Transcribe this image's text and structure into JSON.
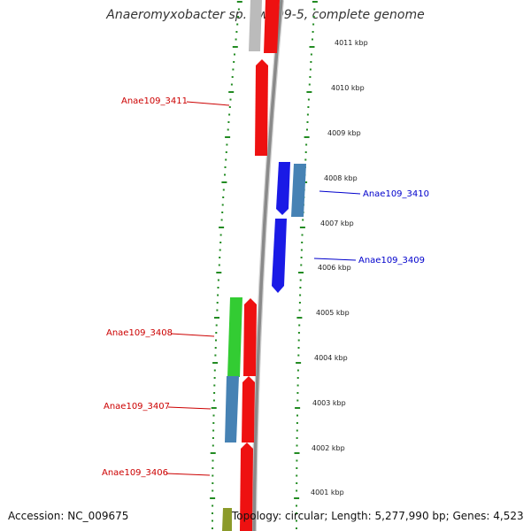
{
  "title": "Anaeromyxobacter sp. Fw109-5, complete genome",
  "footer": {
    "accession": "Accession: NC_009675",
    "summary": "Topology: circular; Length: 5,277,990 bp; Genes: 4,523"
  },
  "colors": {
    "tick": "#228b22",
    "backbone": "#8a8a8a",
    "red_gene": "#ee1111",
    "blue_gene": "#1a1ae6",
    "steel_gene": "#4682b4",
    "green_gene": "#33cc33",
    "grey_gene": "#bbbbbb",
    "olive_gene": "#8b9a2a",
    "label_red": "#cc0000",
    "label_blue": "#0000cc"
  },
  "scale_labels": [
    "4011 kbp",
    "4010 kbp",
    "4009 kbp",
    "4008 kbp",
    "4007 kbp",
    "4006 kbp",
    "4005 kbp",
    "4004 kbp",
    "4003 kbp",
    "4002 kbp",
    "4001 kbp"
  ],
  "gene_labels": [
    "Anae109_3411",
    "Anae109_3410",
    "Anae109_3409",
    "Anae109_3408",
    "Anae109_3407",
    "Anae109_3406"
  ]
}
